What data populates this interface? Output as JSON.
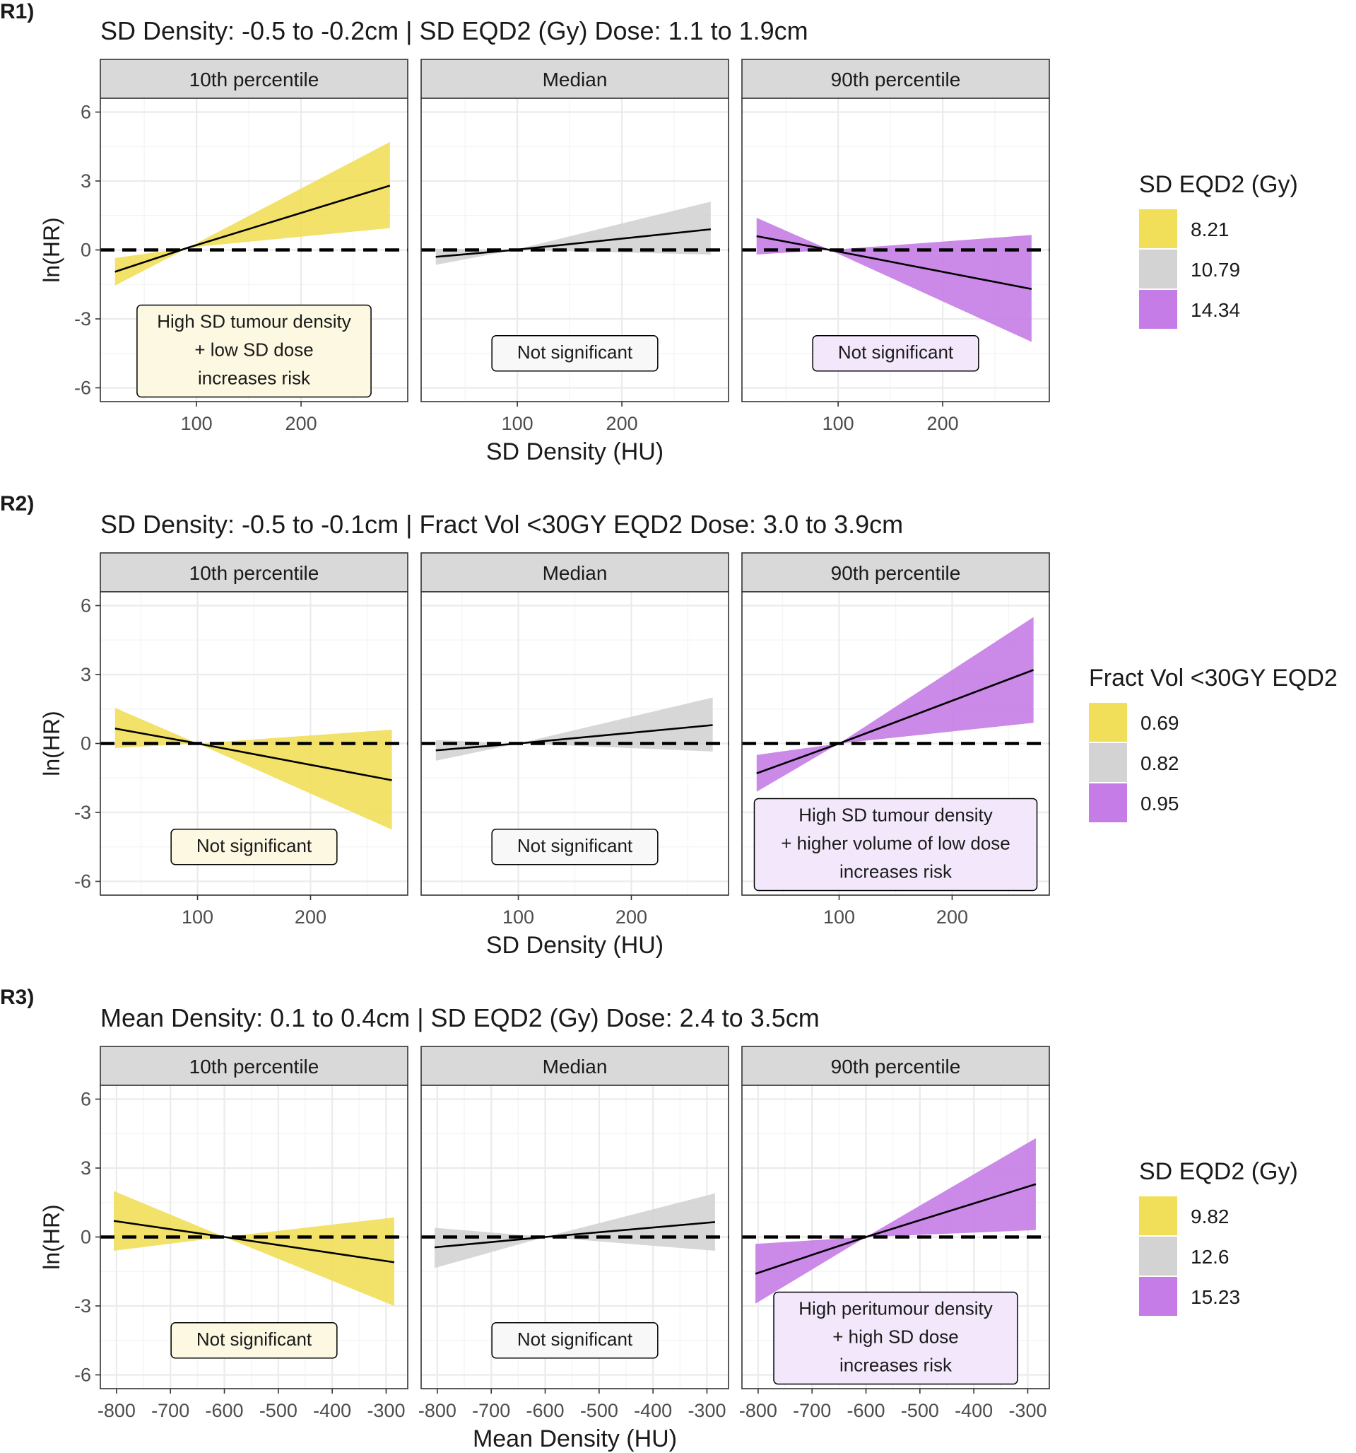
{
  "colors": {
    "low": "#f1df5a",
    "mid": "#d3d3d3",
    "high": "#c57ce6",
    "ann_low": "#fdf8e1",
    "ann_mid": "#f8f8f8",
    "ann_high": "#f3e8fb",
    "strip": "#d9d9d9",
    "grid_major": "#ebebeb",
    "grid_minor": "#f5f5f5"
  },
  "chart_data": [
    {
      "type": "line",
      "panel_label": "R1)",
      "title": "SD Density: -0.5 to -0.2cm | SD EQD2 (Gy) Dose: 1.1 to 1.9cm",
      "xlabel": "SD Density (HU)",
      "ylabel": "ln(HR)",
      "xlim": [
        8,
        302
      ],
      "ylim": [
        -6.6,
        6.6
      ],
      "xticks": [
        100,
        200
      ],
      "xtick_labels": [
        "100",
        "200"
      ],
      "xminor": [
        50,
        150,
        250
      ],
      "yticks": [
        -6,
        -3,
        0,
        3,
        6
      ],
      "ytick_labels": [
        "-6",
        "-3",
        "0",
        "3",
        "6"
      ],
      "reference_line": 0,
      "legend": {
        "title": "SD EQD2 (Gy)",
        "entries": [
          {
            "label": "8.21",
            "color": "#f1df5a"
          },
          {
            "label": "10.79",
            "color": "#d3d3d3"
          },
          {
            "label": "14.34",
            "color": "#c57ce6"
          }
        ]
      },
      "facets": [
        {
          "strip": "10th percentile",
          "fill": "#f1df5a",
          "x": [
            22,
            92,
            285
          ],
          "fit": [
            -0.95,
            0.1,
            2.8
          ],
          "lower": [
            -1.55,
            0.1,
            0.95
          ],
          "upper": [
            -0.35,
            0.1,
            4.7
          ],
          "annotation": {
            "lines": [
              "High SD tumour density",
              "+ low SD dose",
              "increases risk"
            ],
            "bg": "#fdf8e1"
          }
        },
        {
          "strip": "Median",
          "fill": "#d3d3d3",
          "x": [
            22,
            97,
            285
          ],
          "fit": [
            -0.3,
            0.0,
            0.9
          ],
          "lower": [
            -0.65,
            0.0,
            -0.2
          ],
          "upper": [
            0.05,
            0.0,
            2.1
          ],
          "annotation": {
            "lines": [
              "Not significant"
            ],
            "bg": "#f8f8f8"
          }
        },
        {
          "strip": "90th percentile",
          "fill": "#c57ce6",
          "x": [
            22,
            92,
            285
          ],
          "fit": [
            0.6,
            0.0,
            -1.7
          ],
          "lower": [
            -0.2,
            0.0,
            -4.0
          ],
          "upper": [
            1.4,
            0.0,
            0.65
          ],
          "annotation": {
            "lines": [
              "Not significant"
            ],
            "bg": "#f3e8fb"
          }
        }
      ]
    },
    {
      "type": "line",
      "panel_label": "R2)",
      "title": "SD Density: -0.5 to -0.1cm | Fract Vol <30GY EQD2 Dose: 3.0 to 3.9cm",
      "xlabel": "SD Density (HU)",
      "ylabel": "ln(HR)",
      "xlim": [
        14,
        286
      ],
      "ylim": [
        -6.6,
        6.6
      ],
      "xticks": [
        100,
        200
      ],
      "xtick_labels": [
        "100",
        "200"
      ],
      "xminor": [
        50,
        150,
        250
      ],
      "yticks": [
        -6,
        -3,
        0,
        3,
        6
      ],
      "ytick_labels": [
        "-6",
        "-3",
        "0",
        "3",
        "6"
      ],
      "reference_line": 0,
      "legend": {
        "title": "Fract Vol <30GY EQD2",
        "entries": [
          {
            "label": "0.69",
            "color": "#f1df5a"
          },
          {
            "label": "0.82",
            "color": "#d3d3d3"
          },
          {
            "label": "0.95",
            "color": "#c57ce6"
          }
        ]
      },
      "facets": [
        {
          "strip": "10th percentile",
          "fill": "#f1df5a",
          "x": [
            27,
            100,
            272
          ],
          "fit": [
            0.65,
            0.0,
            -1.6
          ],
          "lower": [
            -0.2,
            0.0,
            -3.75
          ],
          "upper": [
            1.55,
            0.0,
            0.6
          ],
          "annotation": {
            "lines": [
              "Not significant"
            ],
            "bg": "#fdf8e1"
          }
        },
        {
          "strip": "Median",
          "fill": "#d3d3d3",
          "x": [
            27,
            100,
            272
          ],
          "fit": [
            -0.3,
            0.0,
            0.8
          ],
          "lower": [
            -0.75,
            0.0,
            -0.35
          ],
          "upper": [
            0.15,
            0.0,
            2.0
          ],
          "annotation": {
            "lines": [
              "Not significant"
            ],
            "bg": "#f8f8f8"
          }
        },
        {
          "strip": "90th percentile",
          "fill": "#c57ce6",
          "x": [
            27,
            100,
            272
          ],
          "fit": [
            -1.3,
            0.0,
            3.2
          ],
          "lower": [
            -2.1,
            0.0,
            0.9
          ],
          "upper": [
            -0.5,
            0.0,
            5.5
          ],
          "annotation": {
            "lines": [
              "High SD tumour density",
              "+ higher volume of low dose",
              "increases risk"
            ],
            "bg": "#f3e8fb"
          }
        }
      ]
    },
    {
      "type": "line",
      "panel_label": "R3)",
      "title": "Mean Density: 0.1 to 0.4cm | SD EQD2 (Gy) Dose: 2.4 to 3.5cm",
      "xlabel": "Mean Density (HU)",
      "ylabel": "ln(HR)",
      "xlim": [
        -830,
        -260
      ],
      "ylim": [
        -6.6,
        6.6
      ],
      "xticks": [
        -800,
        -700,
        -600,
        -500,
        -400,
        -300
      ],
      "xtick_labels": [
        "-800",
        "-700",
        "-600",
        "-500",
        "-400",
        "-300"
      ],
      "xminor": [
        -750,
        -650,
        -550,
        -450,
        -350
      ],
      "yticks": [
        -6,
        -3,
        0,
        3,
        6
      ],
      "ytick_labels": [
        "-6",
        "-3",
        "0",
        "3",
        "6"
      ],
      "reference_line": 0,
      "legend": {
        "title": "SD EQD2 (Gy)",
        "entries": [
          {
            "label": "9.82",
            "color": "#f1df5a"
          },
          {
            "label": "12.6",
            "color": "#d3d3d3"
          },
          {
            "label": "15.23",
            "color": "#c57ce6"
          }
        ]
      },
      "facets": [
        {
          "strip": "10th percentile",
          "fill": "#f1df5a",
          "x": [
            -805,
            -600,
            -285
          ],
          "fit": [
            0.7,
            0.0,
            -1.1
          ],
          "lower": [
            -0.6,
            0.0,
            -3.0
          ],
          "upper": [
            2.0,
            0.0,
            0.85
          ],
          "annotation": {
            "lines": [
              "Not significant"
            ],
            "bg": "#fdf8e1"
          }
        },
        {
          "strip": "Median",
          "fill": "#d3d3d3",
          "x": [
            -805,
            -600,
            -285
          ],
          "fit": [
            -0.45,
            0.0,
            0.65
          ],
          "lower": [
            -1.35,
            0.0,
            -0.6
          ],
          "upper": [
            0.4,
            0.0,
            1.9
          ],
          "annotation": {
            "lines": [
              "Not significant"
            ],
            "bg": "#f8f8f8"
          }
        },
        {
          "strip": "90th percentile",
          "fill": "#c57ce6",
          "x": [
            -805,
            -600,
            -285
          ],
          "fit": [
            -1.6,
            0.0,
            2.3
          ],
          "lower": [
            -2.9,
            0.0,
            0.3
          ],
          "upper": [
            -0.3,
            0.0,
            4.3
          ],
          "annotation": {
            "lines": [
              "High peritumour density",
              "+ high SD dose",
              "increases risk"
            ],
            "bg": "#f3e8fb"
          }
        }
      ]
    }
  ]
}
